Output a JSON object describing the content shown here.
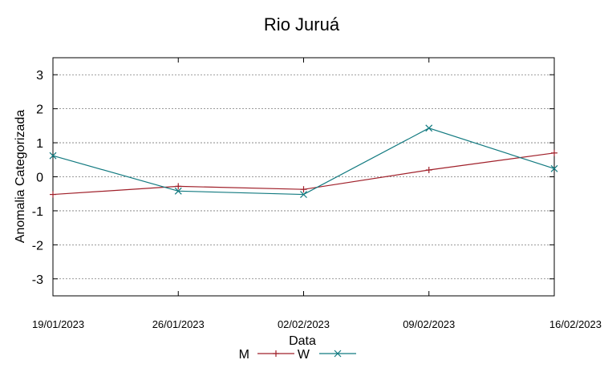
{
  "chart_data": {
    "type": "line",
    "title": "Rio Juruá",
    "xlabel": "Data",
    "ylabel": "Anomalia Categorizada",
    "categories": [
      "19/01/2023",
      "26/01/2023",
      "02/02/2023",
      "09/02/2023",
      "16/02/2023"
    ],
    "yticks": [
      "3",
      "2",
      "1",
      "0",
      "-1",
      "-2",
      "-3"
    ],
    "ylim": [
      -3.5,
      3.5
    ],
    "grid": true,
    "legend": "bottom-center",
    "series": [
      {
        "name": "M",
        "color": "#a0202a",
        "marker": "plus",
        "values": [
          -0.52,
          -0.28,
          -0.37,
          0.2,
          0.7
        ]
      },
      {
        "name": "W",
        "color": "#127a80",
        "marker": "x",
        "values": [
          0.62,
          -0.42,
          -0.52,
          1.43,
          0.24
        ]
      }
    ]
  }
}
